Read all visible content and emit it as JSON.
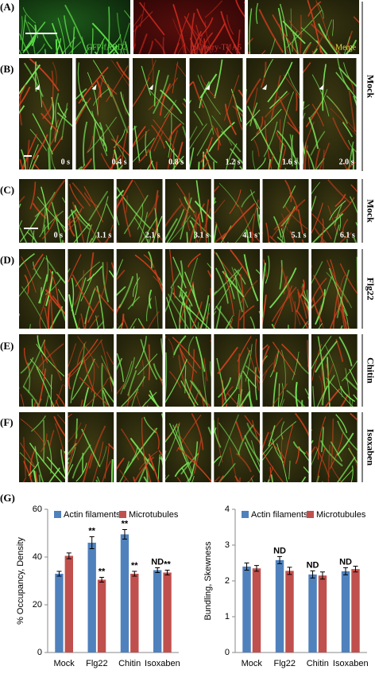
{
  "panel_labels": [
    "(A)",
    "(B)",
    "(C)",
    "(D)",
    "(E)",
    "(F)",
    "(G)"
  ],
  "panel_a": {
    "channels": [
      "GFP-fABD2",
      "mCherry-TUA5",
      "Merge"
    ]
  },
  "panel_b": {
    "times": [
      "0 s",
      "0.4 s",
      "0.8 s",
      "1.2 s",
      "1.6 s",
      "2.0 s"
    ]
  },
  "panel_c": {
    "times": [
      "0 s",
      "1.1 s",
      "2.1 s",
      "3.1 s",
      "4.1 s",
      "5.1 s",
      "6.1 s"
    ]
  },
  "side_labels": [
    "Mock",
    "Mock",
    "Flg22",
    "Chitin",
    "Isoxaben"
  ],
  "chart_data": [
    {
      "type": "bar",
      "ylabel": "% Occupancy, Density",
      "categories": [
        "Mock",
        "Flg22",
        "Chitin",
        "Isoxaben"
      ],
      "ylim": [
        0,
        60
      ],
      "yticks": [
        0,
        20,
        40,
        60
      ],
      "series": [
        {
          "name": "Actin filaments",
          "color": "#4f81bd",
          "values": [
            33,
            46,
            49.5,
            34.5
          ],
          "errors": [
            1,
            2.5,
            2,
            1
          ],
          "annotations": [
            null,
            "**",
            "**",
            "ND"
          ]
        },
        {
          "name": "Microtubules",
          "color": "#c0504d",
          "values": [
            40.5,
            30.5,
            33,
            33.5
          ],
          "errors": [
            1.2,
            1,
            1,
            1
          ],
          "annotations": [
            null,
            "**",
            "**",
            "**"
          ]
        }
      ]
    },
    {
      "type": "bar",
      "ylabel": "Bundling, Skewness",
      "categories": [
        "Mock",
        "Flg22",
        "Chitin",
        "Isoxaben"
      ],
      "ylim": [
        0,
        4
      ],
      "yticks": [
        0,
        1,
        2,
        3,
        4
      ],
      "series": [
        {
          "name": "Actin filaments",
          "color": "#4f81bd",
          "values": [
            2.4,
            2.58,
            2.18,
            2.27
          ],
          "errors": [
            0.1,
            0.1,
            0.1,
            0.1
          ],
          "annotations": [
            null,
            "ND",
            "ND",
            "ND"
          ]
        },
        {
          "name": "Microtubules",
          "color": "#c0504d",
          "values": [
            2.35,
            2.28,
            2.15,
            2.33
          ],
          "errors": [
            0.08,
            0.1,
            0.1,
            0.08
          ],
          "annotations": [
            null,
            null,
            null,
            null
          ]
        }
      ]
    }
  ]
}
